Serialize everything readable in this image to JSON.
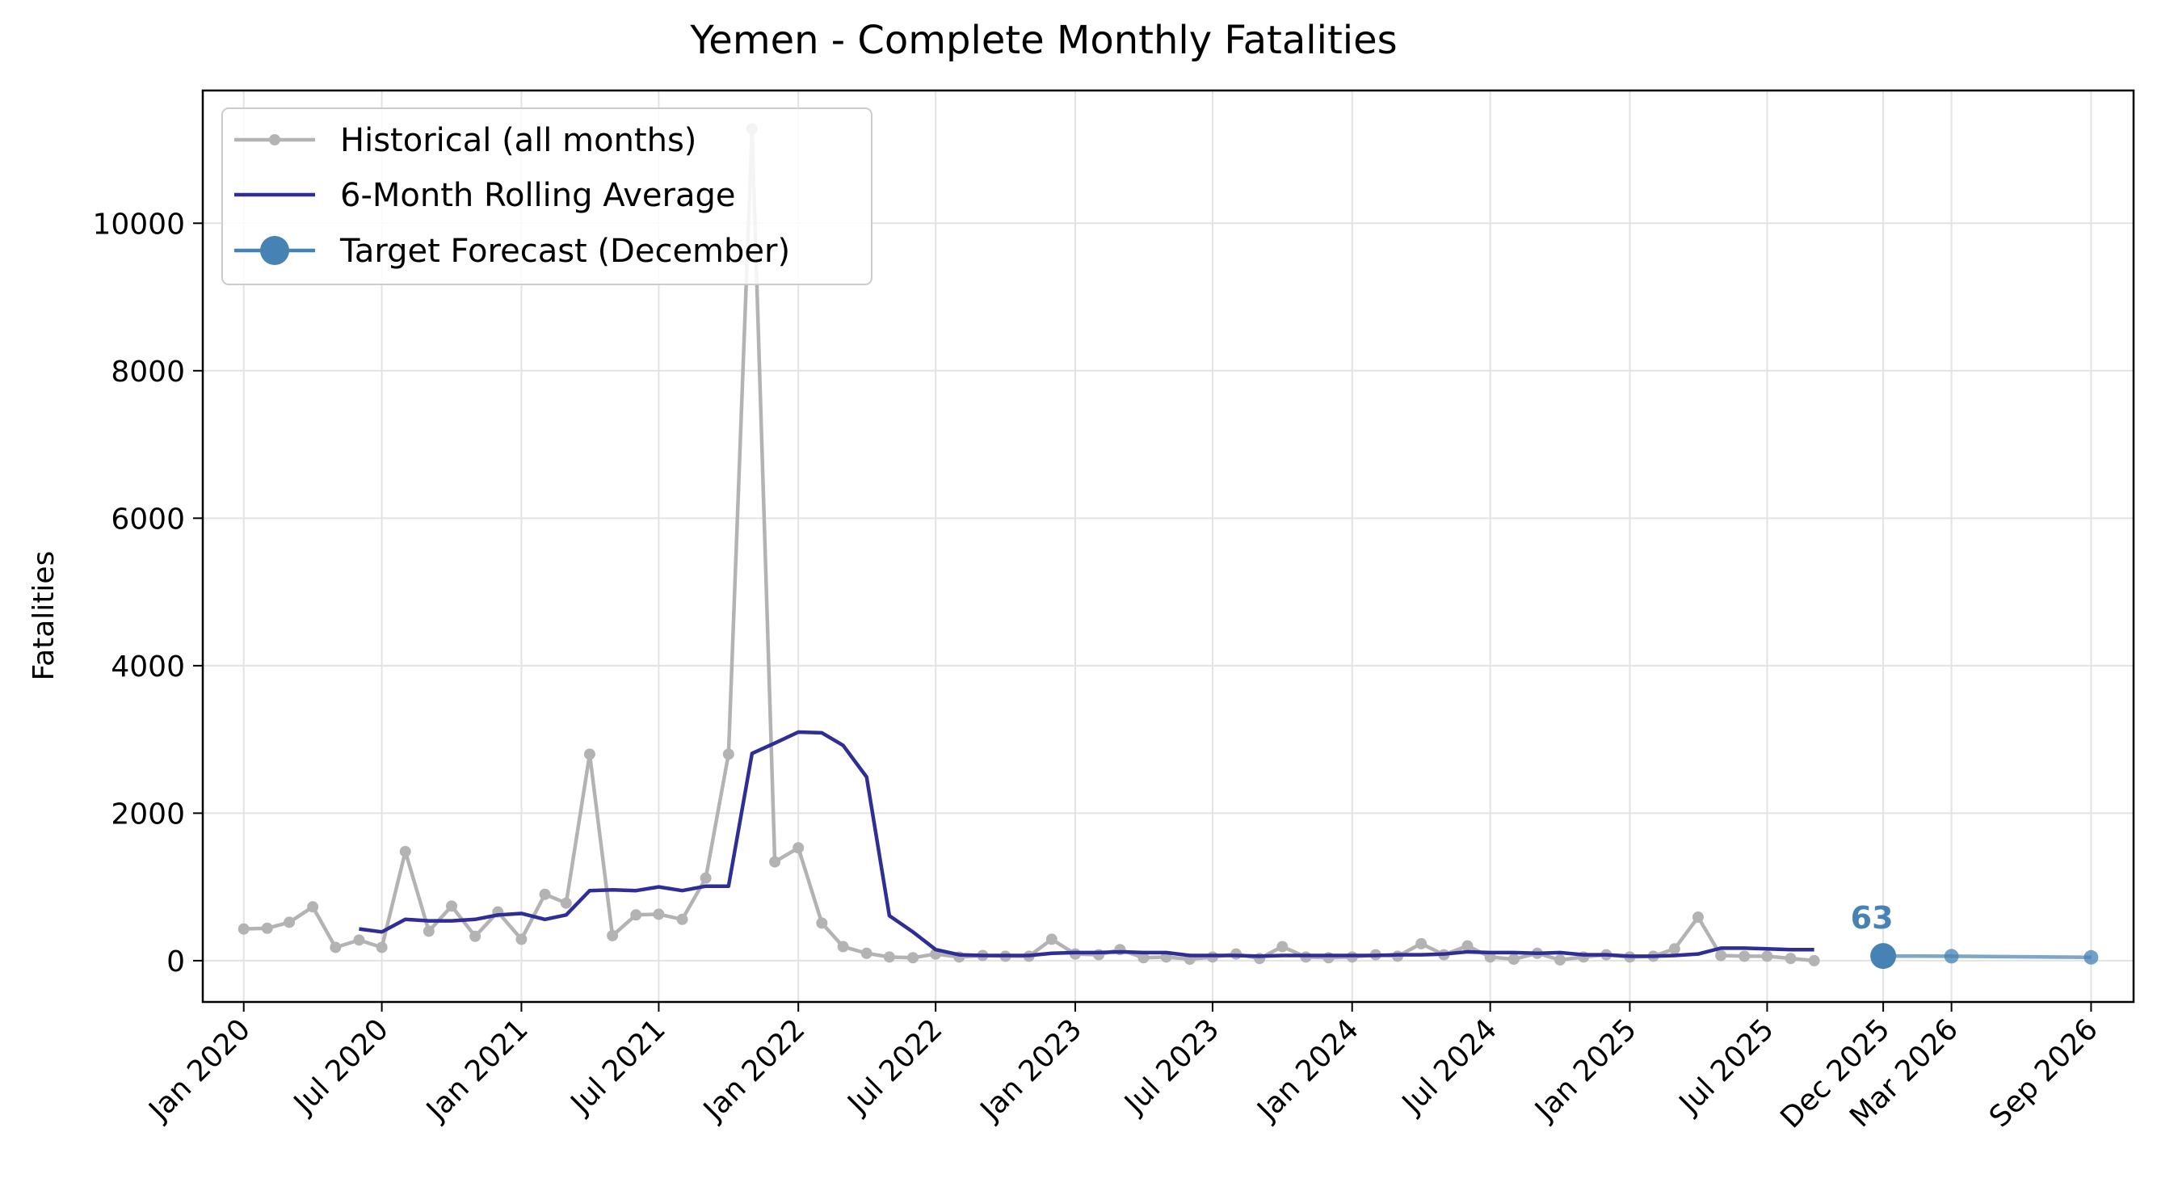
{
  "chart_data": {
    "type": "line",
    "title": "Yemen - Complete Monthly Fatalities",
    "xlabel": "",
    "ylabel": "Fatalities",
    "ylim": [
      -560,
      11800
    ],
    "xlim": [
      "2019-11-08",
      "2026-10-27"
    ],
    "yticks": [
      0,
      2000,
      4000,
      6000,
      8000,
      10000
    ],
    "xticks": [
      {
        "date": "2020-01-01",
        "label": "Jan 2020"
      },
      {
        "date": "2020-07-01",
        "label": "Jul 2020"
      },
      {
        "date": "2021-01-01",
        "label": "Jan 2021"
      },
      {
        "date": "2021-07-01",
        "label": "Jul 2021"
      },
      {
        "date": "2022-01-01",
        "label": "Jan 2022"
      },
      {
        "date": "2022-07-01",
        "label": "Jul 2022"
      },
      {
        "date": "2023-01-01",
        "label": "Jan 2023"
      },
      {
        "date": "2023-07-01",
        "label": "Jul 2023"
      },
      {
        "date": "2024-01-01",
        "label": "Jan 2024"
      },
      {
        "date": "2024-07-01",
        "label": "Jul 2024"
      },
      {
        "date": "2025-01-01",
        "label": "Jan 2025"
      },
      {
        "date": "2025-07-01",
        "label": "Jul 2025"
      },
      {
        "date": "2025-12-01",
        "label": "Dec 2025"
      },
      {
        "date": "2026-03-01",
        "label": "Mar 2026"
      },
      {
        "date": "2026-09-01",
        "label": "Sep 2026"
      }
    ],
    "grid": true,
    "legend_position": "top-left",
    "series": [
      {
        "name": "Historical (all months)",
        "color": "#b3b3b3",
        "marker": "dot",
        "x": [
          "2020-01",
          "2020-02",
          "2020-03",
          "2020-04",
          "2020-05",
          "2020-06",
          "2020-07",
          "2020-08",
          "2020-09",
          "2020-10",
          "2020-11",
          "2020-12",
          "2021-01",
          "2021-02",
          "2021-03",
          "2021-04",
          "2021-05",
          "2021-06",
          "2021-07",
          "2021-08",
          "2021-09",
          "2021-10",
          "2021-11",
          "2021-12",
          "2022-01",
          "2022-02",
          "2022-03",
          "2022-04",
          "2022-05",
          "2022-06",
          "2022-07",
          "2022-08",
          "2022-09",
          "2022-10",
          "2022-11",
          "2022-12",
          "2023-01",
          "2023-02",
          "2023-03",
          "2023-04",
          "2023-05",
          "2023-06",
          "2023-07",
          "2023-08",
          "2023-09",
          "2023-10",
          "2023-11",
          "2023-12",
          "2024-01",
          "2024-02",
          "2024-03",
          "2024-04",
          "2024-05",
          "2024-06",
          "2024-07",
          "2024-08",
          "2024-09",
          "2024-10",
          "2024-11",
          "2024-12",
          "2025-01",
          "2025-02",
          "2025-03",
          "2025-04",
          "2025-05",
          "2025-06",
          "2025-07",
          "2025-08",
          "2025-09"
        ],
        "values": [
          430,
          440,
          520,
          730,
          180,
          280,
          180,
          1480,
          400,
          740,
          330,
          660,
          290,
          900,
          780,
          2800,
          340,
          620,
          630,
          560,
          1120,
          2800,
          11280,
          1340,
          1530,
          510,
          190,
          100,
          50,
          40,
          90,
          50,
          70,
          60,
          60,
          290,
          90,
          80,
          150,
          40,
          50,
          20,
          50,
          90,
          30,
          190,
          50,
          40,
          50,
          80,
          60,
          230,
          80,
          200,
          50,
          20,
          100,
          10,
          50,
          80,
          50,
          60,
          160,
          590,
          70,
          60,
          60,
          30,
          0
        ]
      },
      {
        "name": "6-Month Rolling Average",
        "color": "#2e2e96",
        "marker": "none",
        "x": [
          "2020-06",
          "2020-07",
          "2020-08",
          "2020-09",
          "2020-10",
          "2020-11",
          "2020-12",
          "2021-01",
          "2021-02",
          "2021-03",
          "2021-04",
          "2021-05",
          "2021-06",
          "2021-07",
          "2021-08",
          "2021-09",
          "2021-10",
          "2021-11",
          "2021-12",
          "2022-01",
          "2022-02",
          "2022-03",
          "2022-04",
          "2022-05",
          "2022-06",
          "2022-07",
          "2022-08",
          "2022-09",
          "2022-10",
          "2022-11",
          "2022-12",
          "2023-01",
          "2023-02",
          "2023-03",
          "2023-04",
          "2023-05",
          "2023-06",
          "2023-07",
          "2023-08",
          "2023-09",
          "2023-10",
          "2023-11",
          "2023-12",
          "2024-01",
          "2024-02",
          "2024-03",
          "2024-04",
          "2024-05",
          "2024-06",
          "2024-07",
          "2024-08",
          "2024-09",
          "2024-10",
          "2024-11",
          "2024-12",
          "2025-01",
          "2025-02",
          "2025-03",
          "2025-04",
          "2025-05",
          "2025-06",
          "2025-07",
          "2025-08",
          "2025-09"
        ],
        "values": [
          430,
          390,
          560,
          540,
          540,
          560,
          620,
          640,
          560,
          620,
          950,
          960,
          950,
          1000,
          950,
          1010,
          1010,
          2810,
          2950,
          3100,
          3090,
          2920,
          2490,
          610,
          390,
          150,
          80,
          70,
          70,
          70,
          100,
          110,
          110,
          120,
          110,
          110,
          70,
          70,
          70,
          60,
          70,
          70,
          70,
          70,
          70,
          80,
          80,
          90,
          120,
          110,
          110,
          100,
          110,
          80,
          80,
          60,
          60,
          70,
          90,
          170,
          170,
          160,
          150,
          150
        ]
      },
      {
        "name": "Target Forecast (December)",
        "color": "#4682b4",
        "marker": "large-dot",
        "x": [
          "2025-12"
        ],
        "values": [
          63
        ],
        "annotation": "63"
      },
      {
        "name": "",
        "color": "#4682b4",
        "marker": "dot",
        "x": [
          "2025-12",
          "2026-03",
          "2026-09"
        ],
        "values": [
          63,
          60,
          45
        ]
      }
    ]
  }
}
